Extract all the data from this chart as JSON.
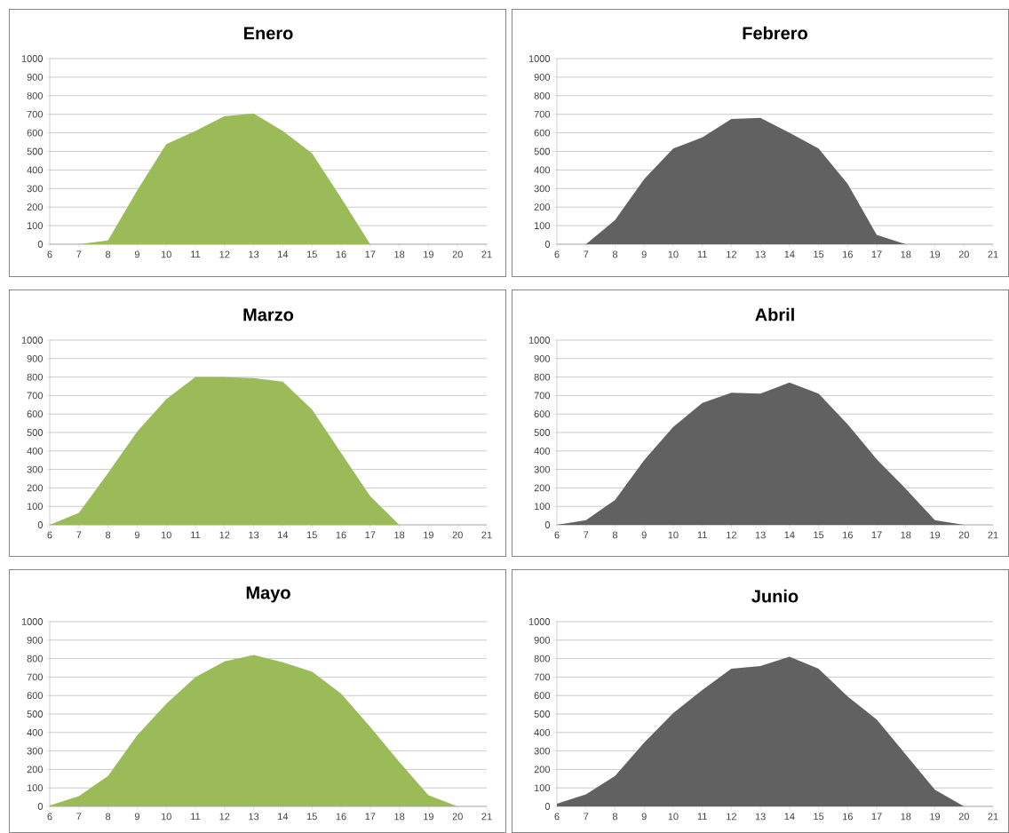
{
  "chart_data": [
    {
      "type": "area",
      "title": "Enero",
      "color": "#9bbb59",
      "grid": "y",
      "x": [
        7,
        8,
        9,
        10,
        11,
        12,
        13,
        14,
        15,
        16,
        17
      ],
      "values": [
        0,
        20,
        290,
        540,
        610,
        690,
        705,
        610,
        490,
        250,
        0
      ],
      "xlim": [
        6,
        21
      ],
      "ylim": [
        0,
        1000
      ],
      "xticks": [
        6,
        7,
        8,
        9,
        10,
        11,
        12,
        13,
        14,
        15,
        16,
        17,
        18,
        19,
        20,
        21
      ],
      "yticks": [
        0,
        100,
        200,
        300,
        400,
        500,
        600,
        700,
        800,
        900,
        1000
      ]
    },
    {
      "type": "area",
      "title": "Febrero",
      "color": "#616161",
      "grid": "y",
      "x": [
        7,
        8,
        9,
        10,
        11,
        12,
        13,
        14,
        15,
        16,
        17,
        18
      ],
      "values": [
        0,
        130,
        350,
        515,
        575,
        675,
        680,
        600,
        515,
        325,
        50,
        0
      ],
      "xlim": [
        6,
        21
      ],
      "ylim": [
        0,
        1000
      ],
      "xticks": [
        6,
        7,
        8,
        9,
        10,
        11,
        12,
        13,
        14,
        15,
        16,
        17,
        18,
        19,
        20,
        21
      ],
      "yticks": [
        0,
        100,
        200,
        300,
        400,
        500,
        600,
        700,
        800,
        900,
        1000
      ]
    },
    {
      "type": "area",
      "title": "Marzo",
      "color": "#9bbb59",
      "grid": "y",
      "x": [
        6,
        7,
        8,
        9,
        10,
        11,
        12,
        13,
        14,
        15,
        16,
        17,
        18
      ],
      "values": [
        0,
        65,
        280,
        505,
        680,
        800,
        800,
        795,
        775,
        625,
        390,
        155,
        0
      ],
      "xlim": [
        6,
        21
      ],
      "ylim": [
        0,
        1000
      ],
      "xticks": [
        6,
        7,
        8,
        9,
        10,
        11,
        12,
        13,
        14,
        15,
        16,
        17,
        18,
        19,
        20,
        21
      ],
      "yticks": [
        0,
        100,
        200,
        300,
        400,
        500,
        600,
        700,
        800,
        900,
        1000
      ]
    },
    {
      "type": "area",
      "title": "Abril",
      "color": "#616161",
      "grid": "y",
      "x": [
        6,
        7,
        8,
        9,
        10,
        11,
        12,
        13,
        14,
        15,
        16,
        17,
        18,
        19,
        20
      ],
      "values": [
        0,
        25,
        135,
        350,
        530,
        660,
        715,
        710,
        770,
        710,
        545,
        355,
        195,
        25,
        0
      ],
      "xlim": [
        6,
        21
      ],
      "ylim": [
        0,
        1000
      ],
      "xticks": [
        6,
        7,
        8,
        9,
        10,
        11,
        12,
        13,
        14,
        15,
        16,
        17,
        18,
        19,
        20,
        21
      ],
      "yticks": [
        0,
        100,
        200,
        300,
        400,
        500,
        600,
        700,
        800,
        900,
        1000
      ]
    },
    {
      "type": "area",
      "title": "Mayo",
      "color": "#9bbb59",
      "grid": "y",
      "x": [
        6,
        7,
        8,
        9,
        10,
        11,
        12,
        13,
        14,
        15,
        16,
        17,
        18,
        19,
        20
      ],
      "values": [
        5,
        55,
        165,
        385,
        555,
        700,
        785,
        820,
        780,
        730,
        610,
        430,
        240,
        60,
        0
      ],
      "xlim": [
        6,
        21
      ],
      "ylim": [
        0,
        1000
      ],
      "xticks": [
        6,
        7,
        8,
        9,
        10,
        11,
        12,
        13,
        14,
        15,
        16,
        17,
        18,
        19,
        20,
        21
      ],
      "yticks": [
        0,
        100,
        200,
        300,
        400,
        500,
        600,
        700,
        800,
        900,
        1000
      ]
    },
    {
      "type": "area",
      "title": "Junio",
      "color": "#616161",
      "grid": "y",
      "x": [
        6,
        7,
        8,
        9,
        10,
        11,
        12,
        13,
        14,
        15,
        16,
        17,
        18,
        19,
        20
      ],
      "values": [
        15,
        65,
        165,
        345,
        505,
        630,
        745,
        760,
        810,
        745,
        595,
        470,
        280,
        90,
        0
      ],
      "xlim": [
        6,
        21
      ],
      "ylim": [
        0,
        1000
      ],
      "xticks": [
        6,
        7,
        8,
        9,
        10,
        11,
        12,
        13,
        14,
        15,
        16,
        17,
        18,
        19,
        20,
        21
      ],
      "yticks": [
        0,
        100,
        200,
        300,
        400,
        500,
        600,
        700,
        800,
        900,
        1000
      ]
    }
  ]
}
